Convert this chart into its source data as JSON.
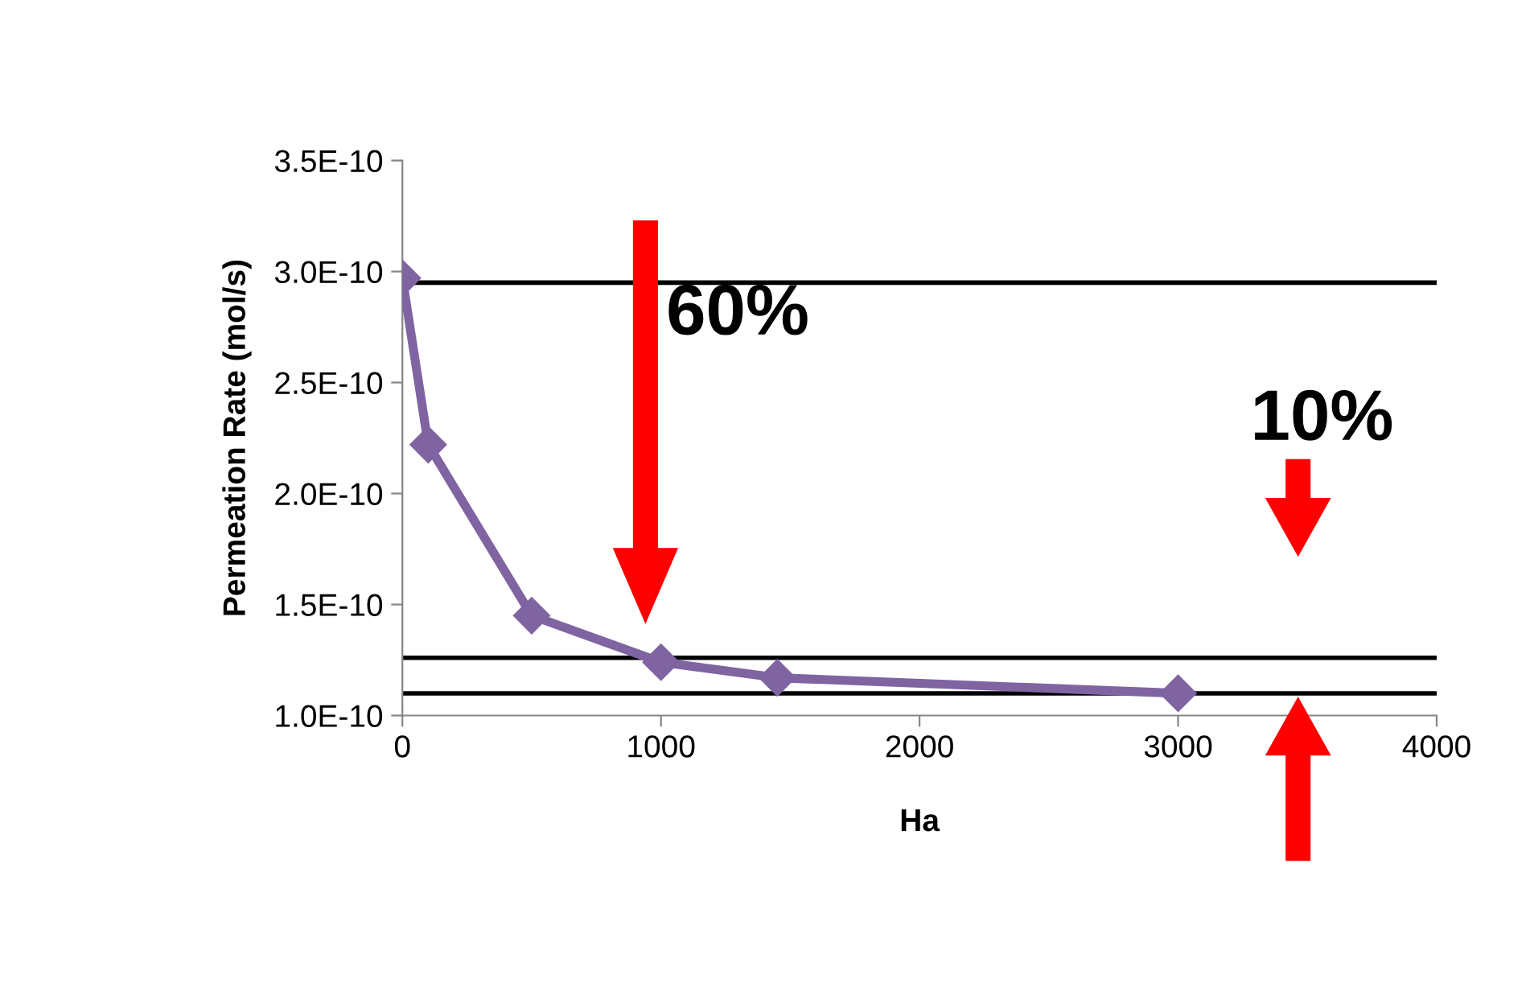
{
  "chart_data": {
    "type": "line",
    "xlabel": "Ha",
    "ylabel": "Permeation Rate (mol/s)",
    "x": [
      0,
      100,
      500,
      1000,
      1450,
      3000
    ],
    "series": [
      {
        "color": "#8064a2",
        "values": [
          2.97e-10,
          2.22e-10,
          1.45e-10,
          1.24e-10,
          1.17e-10,
          1.1e-10
        ]
      }
    ],
    "marker": "diamond",
    "line_style": "solid",
    "grid": false,
    "legend": false,
    "xlim": [
      0,
      4000
    ],
    "xticks": [
      0,
      1000,
      2000,
      3000,
      4000
    ],
    "ylim": [
      1e-10,
      3.5e-10
    ],
    "yticks": [
      {
        "value": 1e-10,
        "label": "1.0E-10"
      },
      {
        "value": 1.5e-10,
        "label": "1.5E-10"
      },
      {
        "value": 2e-10,
        "label": "2.0E-10"
      },
      {
        "value": 2.5e-10,
        "label": "2.5E-10"
      },
      {
        "value": 3e-10,
        "label": "3.0E-10"
      },
      {
        "value": 3.5e-10,
        "label": "3.5E-10"
      }
    ],
    "ref_lines": [
      {
        "axis": "y",
        "value": 2.95e-10,
        "color": "#000000"
      },
      {
        "axis": "y",
        "value": 1.26e-10,
        "color": "#000000"
      },
      {
        "axis": "y",
        "value": 1.1e-10,
        "color": "#000000"
      }
    ],
    "annotations": [
      "60%",
      "10%"
    ]
  }
}
